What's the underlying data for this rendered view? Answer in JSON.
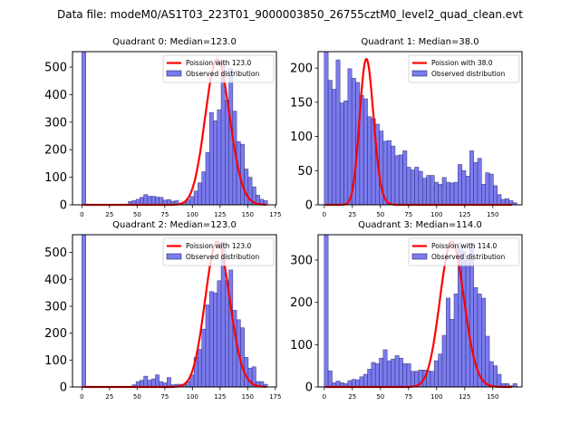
{
  "suptitle": "Data file: modeM0/AS1T03_223T01_9000003850_26755cztM0_level2_quad_clean.evt",
  "chart_data": [
    {
      "type": "bar",
      "title": "Quadrant 0: Median=123.0",
      "xlim": [
        -8.5,
        176
      ],
      "ylim": [
        0,
        556
      ],
      "xticks": [
        0,
        25,
        50,
        75,
        100,
        125,
        150,
        175
      ],
      "yticks": [
        0,
        100,
        200,
        300,
        400,
        500
      ],
      "bin_width": 3.5,
      "bin_start": 0,
      "hist": [
        556,
        0,
        0,
        0,
        0,
        0,
        0,
        0,
        0,
        0,
        0,
        0,
        12,
        15,
        20,
        27,
        37,
        31,
        31,
        28,
        27,
        17,
        19,
        13,
        15,
        0,
        8,
        18,
        30,
        50,
        80,
        120,
        190,
        335,
        305,
        345,
        520,
        380,
        495,
        340,
        230,
        220,
        130,
        100,
        65,
        35,
        20,
        15
      ],
      "poisson_mean": 123.0,
      "poisson_peak": 528,
      "legend": [
        "Poission with 123.0",
        "Observed distribution"
      ]
    },
    {
      "type": "bar",
      "title": "Quadrant 1: Median=38.0",
      "xlim": [
        -5.5,
        176
      ],
      "ylim": [
        0,
        224
      ],
      "xticks": [
        0,
        25,
        50,
        75,
        100,
        125,
        150
      ],
      "yticks": [
        0,
        50,
        100,
        150,
        200
      ],
      "bin_width": 3.5,
      "bin_start": 0,
      "hist": [
        224,
        182,
        169,
        212,
        149,
        152,
        199,
        185,
        179,
        160,
        155,
        129,
        126,
        118,
        108,
        93,
        94,
        86,
        72,
        73,
        79,
        55,
        51,
        55,
        49,
        39,
        43,
        43,
        33,
        30,
        40,
        33,
        32,
        33,
        59,
        50,
        42,
        79,
        62,
        68,
        30,
        47,
        45,
        28,
        15,
        8,
        9,
        6,
        3
      ],
      "poisson_mean": 38.0,
      "poisson_peak": 213,
      "legend": [
        "Poission with 38.0",
        "Observed distribution"
      ]
    },
    {
      "type": "bar",
      "title": "Quadrant 2: Median=123.0",
      "xlim": [
        -8.5,
        176
      ],
      "ylim": [
        0,
        566
      ],
      "xticks": [
        0,
        25,
        50,
        75,
        100,
        125,
        150,
        175
      ],
      "yticks": [
        0,
        100,
        200,
        300,
        400,
        500
      ],
      "bin_width": 3.5,
      "bin_start": 0,
      "hist": [
        566,
        0,
        0,
        0,
        0,
        0,
        0,
        0,
        0,
        0,
        0,
        0,
        0,
        8,
        20,
        25,
        40,
        25,
        30,
        45,
        20,
        15,
        35,
        8,
        10,
        10,
        8,
        20,
        45,
        110,
        140,
        215,
        305,
        355,
        350,
        395,
        540,
        395,
        435,
        285,
        250,
        220,
        110,
        70,
        75,
        20,
        20,
        10
      ],
      "poisson_mean": 123.0,
      "poisson_peak": 540,
      "legend": [
        "Poission with 123.0",
        "Observed distribution"
      ]
    },
    {
      "type": "bar",
      "title": "Quadrant 3: Median=114.0",
      "xlim": [
        -5.5,
        176
      ],
      "ylim": [
        0,
        360
      ],
      "xticks": [
        0,
        25,
        50,
        75,
        100,
        125,
        150
      ],
      "yticks": [
        0,
        100,
        200,
        300
      ],
      "bin_width": 3.5,
      "bin_start": 0,
      "hist": [
        360,
        38,
        10,
        14,
        10,
        8,
        15,
        18,
        17,
        24,
        30,
        42,
        58,
        55,
        68,
        88,
        62,
        66,
        74,
        68,
        55,
        55,
        37,
        37,
        40,
        40,
        38,
        37,
        62,
        78,
        122,
        210,
        160,
        220,
        340,
        320,
        300,
        340,
        235,
        220,
        210,
        120,
        60,
        50,
        30,
        8,
        8,
        3,
        8
      ],
      "poisson_mean": 114.0,
      "poisson_peak": 343,
      "legend": [
        "Poission with 114.0",
        "Observed distribution"
      ]
    }
  ],
  "colors": {
    "bar_fill": "#7b7bef",
    "bar_edge": "#2a2a6e",
    "poisson_line": "#ff0000"
  }
}
